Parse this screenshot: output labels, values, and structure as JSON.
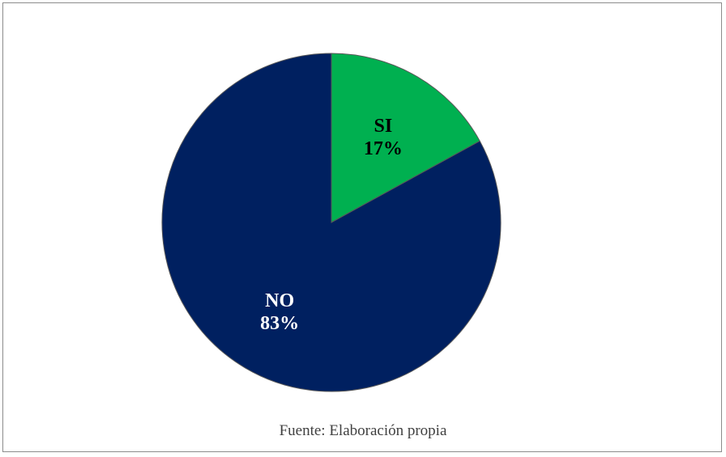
{
  "chart_data": {
    "type": "pie",
    "title": "",
    "slices": [
      {
        "label": "SI",
        "percent_label": "17%",
        "value": 17,
        "color": "#00b050",
        "label_color": "#000000"
      },
      {
        "label": "NO",
        "percent_label": "83%",
        "value": 83,
        "color": "#002060",
        "label_color": "#ffffff"
      }
    ],
    "start_angle": "12 o'clock",
    "direction": "clockwise",
    "legend": "none"
  },
  "footer": {
    "source": "Fuente: Elaboración propia"
  }
}
